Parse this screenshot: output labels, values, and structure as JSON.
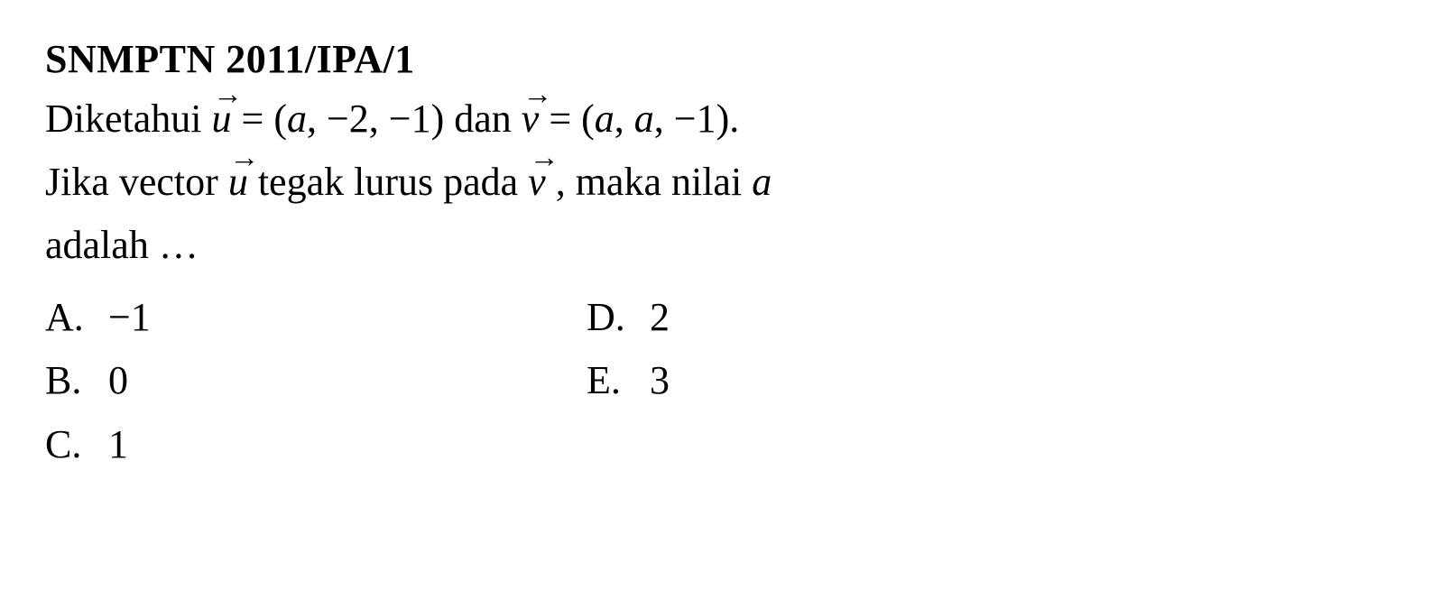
{
  "title": "SNMPTN 2011/IPA/1",
  "question": {
    "text_part1": "Diketahui ",
    "vec_u": "u",
    "eq1": " = (",
    "var_a1": "a",
    "eq1b": ", −2, −1)   dan ",
    "vec_v": "v",
    "eq2": " = (",
    "var_a2": "a",
    "eq2b": ", ",
    "var_a3": "a",
    "eq2c": ", −1).",
    "text_part2a": "Jika vector ",
    "vec_u2": "u",
    "text_part2b": " tegak lurus pada ",
    "vec_v2": "v",
    "text_part2c": " , maka nilai ",
    "var_a4": "a",
    "text_part3": "adalah …"
  },
  "options": {
    "a": {
      "label": "A.",
      "value": "−1"
    },
    "b": {
      "label": "B.",
      "value": "0"
    },
    "c": {
      "label": "C.",
      "value": "1"
    },
    "d": {
      "label": "D.",
      "value": "2"
    },
    "e": {
      "label": "E.",
      "value": "3"
    }
  },
  "styles": {
    "background_color": "#ffffff",
    "text_color": "#000000",
    "title_fontsize": 44,
    "body_fontsize": 44,
    "font_family": "Times New Roman"
  }
}
